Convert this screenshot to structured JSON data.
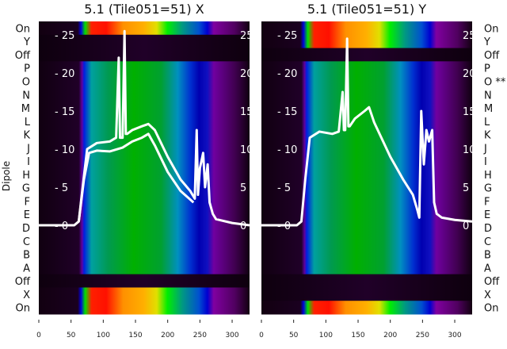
{
  "chart_data": [
    {
      "type": "heatmap",
      "title": "5.1 (Tile051=51) X",
      "ylabel": "Dipole",
      "row_labels": [
        "On",
        "Y",
        "Off",
        "P",
        "O",
        "N",
        "M",
        "L",
        "K",
        "J",
        "I",
        "H",
        "G",
        "F",
        "E",
        "D",
        "C",
        "B",
        "A",
        "Off",
        "X",
        "On"
      ],
      "lit_rows": [
        "On_top",
        "X",
        "On_bottom"
      ],
      "xlim": [
        0,
        327
      ],
      "xticks": [
        0,
        50,
        100,
        150,
        200,
        250,
        300
      ],
      "inner_ylim": [
        0,
        26
      ],
      "inner_yticks": [
        0,
        5,
        10,
        15,
        20,
        25
      ],
      "series": [
        {
          "name": "spectrum-upper",
          "x": [
            0,
            55,
            62,
            68,
            75,
            90,
            110,
            120,
            124,
            126,
            130,
            133,
            135,
            137,
            145,
            160,
            170,
            180,
            200,
            220,
            235,
            242,
            245,
            247,
            250,
            255,
            258,
            262,
            265,
            270,
            275,
            300,
            327
          ],
          "y": [
            0,
            0,
            0.5,
            5,
            10,
            10.8,
            11,
            11.5,
            22,
            11.5,
            11.5,
            25.5,
            12,
            12,
            12.5,
            13,
            13.3,
            12.5,
            9,
            6,
            4.5,
            3.5,
            12.5,
            4,
            7.5,
            9.5,
            5,
            8,
            3,
            1.5,
            0.8,
            0.3,
            0
          ]
        },
        {
          "name": "spectrum-lower",
          "x": [
            62,
            70,
            78,
            90,
            110,
            130,
            145,
            160,
            170,
            180,
            200,
            220,
            240
          ],
          "y": [
            0.5,
            6,
            9.5,
            9.8,
            9.7,
            10.2,
            11,
            11.5,
            12,
            10.5,
            7,
            4.5,
            3
          ]
        }
      ]
    },
    {
      "type": "heatmap",
      "title": "5.1 (Tile051=51) Y",
      "row_labels": [
        "On",
        "Y",
        "Off",
        "P",
        "O **",
        "N",
        "M",
        "L",
        "K",
        "J",
        "I",
        "H",
        "G",
        "F",
        "E",
        "D",
        "C",
        "B",
        "A",
        "Off",
        "X",
        "On"
      ],
      "lit_rows": [
        "On_top",
        "Y",
        "On_bottom"
      ],
      "xlim": [
        0,
        327
      ],
      "xticks": [
        0,
        50,
        100,
        150,
        200,
        250,
        300
      ],
      "inner_ylim": [
        0,
        26
      ],
      "inner_yticks": [
        0,
        5,
        10,
        15,
        20,
        25
      ],
      "series": [
        {
          "name": "spectrum",
          "x": [
            0,
            55,
            62,
            68,
            75,
            90,
            110,
            120,
            126,
            128,
            130,
            133,
            135,
            137,
            145,
            160,
            167,
            175,
            200,
            220,
            235,
            242,
            245,
            248,
            252,
            256,
            260,
            265,
            268,
            272,
            280,
            300,
            327
          ],
          "y": [
            0,
            0,
            0.5,
            6,
            11.5,
            12.3,
            12,
            12.3,
            17.5,
            12.5,
            12.5,
            24.5,
            13,
            13,
            14,
            15,
            15.5,
            13.5,
            9,
            6,
            4,
            2,
            1,
            15,
            8,
            12.5,
            11,
            12.5,
            3,
            1.5,
            1,
            0.7,
            0.5
          ]
        }
      ]
    }
  ]
}
